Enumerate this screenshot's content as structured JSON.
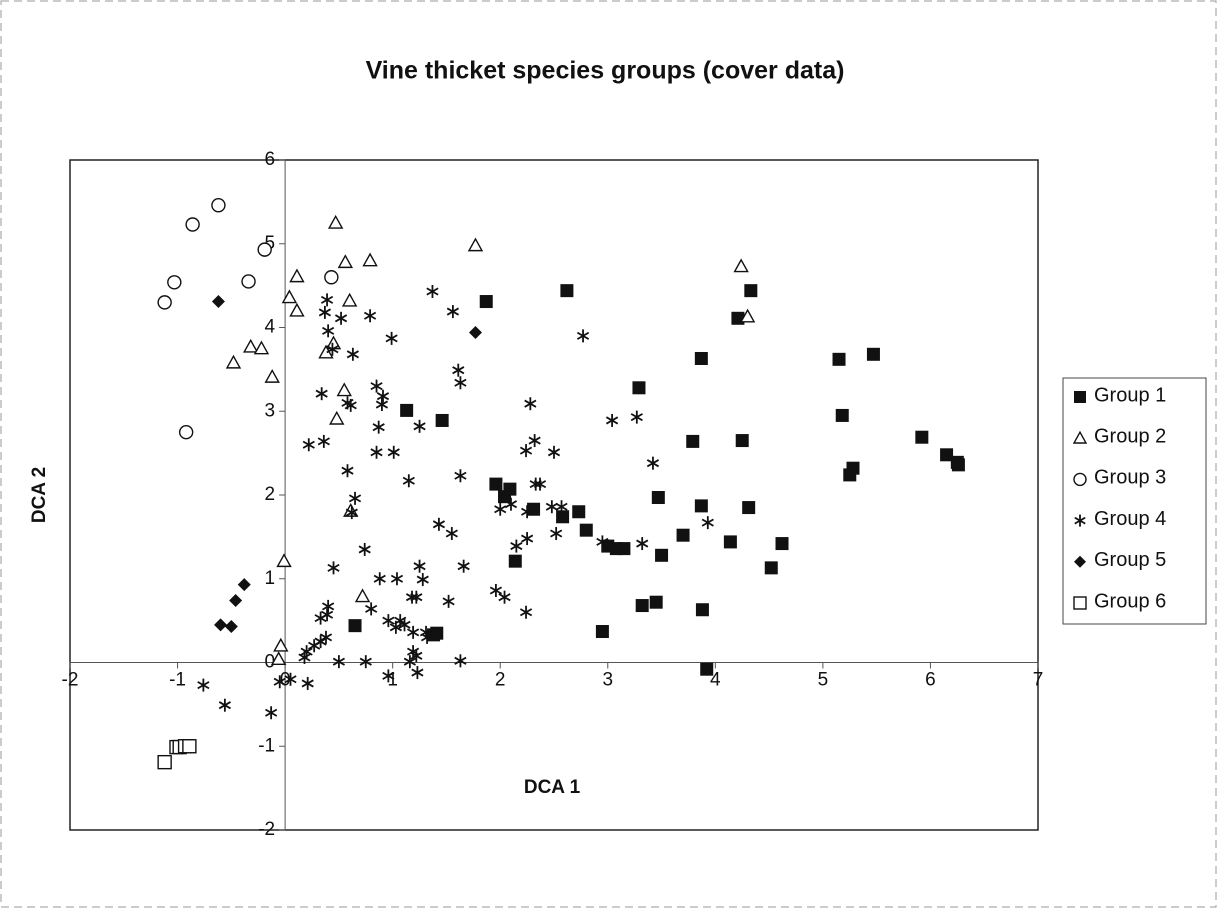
{
  "chart_data": {
    "type": "scatter",
    "title": "Vine thicket species groups (cover data)",
    "x_label": "DCA 1",
    "y_label": "DCA 2",
    "xlim": [
      -2,
      7
    ],
    "ylim": [
      -2,
      6
    ],
    "xticks": [
      -2,
      -1,
      0,
      1,
      2,
      3,
      4,
      5,
      6,
      7
    ],
    "yticks": [
      -2,
      -1,
      0,
      1,
      2,
      3,
      4,
      5,
      6
    ],
    "legend": "right",
    "series": [
      {
        "name": "Group 1",
        "color": "#111111",
        "marker": "square-filled",
        "x": [
          1.87,
          2.62,
          4.33,
          4.21,
          3.87,
          3.29,
          5.15,
          5.47,
          1.13,
          1.46,
          5.18,
          3.79,
          4.25,
          5.92,
          6.15,
          6.25,
          6.26,
          5.25,
          5.28,
          1.96,
          2.09,
          2.04,
          3.47,
          3.87,
          4.31,
          2.31,
          2.73,
          2.58,
          2.8,
          3.7,
          3.0,
          3.08,
          3.15,
          4.14,
          4.62,
          3.5,
          4.52,
          2.14,
          0.65,
          1.41,
          1.38,
          3.32,
          3.45,
          3.88,
          2.95,
          3.92
        ],
        "y": [
          4.31,
          4.44,
          4.44,
          4.11,
          3.63,
          3.28,
          3.62,
          3.68,
          3.01,
          2.89,
          2.95,
          2.64,
          2.65,
          2.69,
          2.48,
          2.39,
          2.36,
          2.24,
          2.32,
          2.13,
          2.07,
          1.98,
          1.97,
          1.87,
          1.85,
          1.83,
          1.8,
          1.74,
          1.58,
          1.52,
          1.39,
          1.36,
          1.36,
          1.44,
          1.42,
          1.28,
          1.13,
          1.21,
          0.44,
          0.35,
          0.33,
          0.68,
          0.72,
          0.63,
          0.37,
          -0.08
        ]
      },
      {
        "name": "Group 2",
        "color": "#111111",
        "marker": "triangle-open",
        "x": [
          0.47,
          1.77,
          0.11,
          0.56,
          0.79,
          4.24,
          0.04,
          0.11,
          0.6,
          4.3,
          0.45,
          0.38,
          -0.32,
          -0.22,
          -0.48,
          -0.12,
          0.55,
          0.48,
          0.61,
          -0.01,
          0.72,
          -0.04,
          -0.06
        ],
        "y": [
          5.25,
          4.98,
          4.61,
          4.78,
          4.8,
          4.73,
          4.36,
          4.2,
          4.32,
          4.13,
          3.81,
          3.7,
          3.77,
          3.75,
          3.58,
          3.41,
          3.25,
          2.91,
          1.81,
          1.21,
          0.79,
          0.2,
          0.04
        ]
      },
      {
        "name": "Group 3",
        "color": "#111111",
        "marker": "circle-open",
        "x": [
          -0.62,
          -0.86,
          -0.19,
          -1.03,
          -0.34,
          -1.12,
          0.43,
          -0.92
        ],
        "y": [
          5.46,
          5.23,
          4.93,
          4.54,
          4.55,
          4.3,
          4.6,
          2.75
        ]
      },
      {
        "name": "Group 4",
        "color": "#111111",
        "marker": "asterisk",
        "x": [
          1.37,
          0.39,
          0.37,
          0.52,
          0.79,
          1.56,
          0.4,
          2.77,
          0.99,
          0.44,
          0.63,
          1.61,
          1.63,
          0.34,
          0.85,
          0.91,
          0.58,
          0.61,
          2.28,
          0.9,
          3.04,
          3.27,
          0.36,
          0.22,
          0.87,
          1.25,
          2.32,
          0.85,
          1.01,
          2.24,
          2.5,
          3.42,
          0.58,
          1.63,
          1.15,
          2.33,
          2.37,
          0.65,
          2.0,
          2.1,
          2.48,
          2.57,
          0.62,
          1.43,
          1.55,
          2.25,
          2.52,
          2.25,
          2.95,
          3.32,
          3.93,
          2.15,
          0.74,
          0.45,
          1.25,
          1.66,
          1.28,
          0.88,
          1.04,
          1.96,
          2.04,
          1.18,
          1.22,
          1.52,
          0.4,
          2.24,
          0.8,
          0.39,
          0.33,
          0.96,
          1.07,
          1.03,
          1.11,
          1.19,
          1.31,
          1.32,
          0.38,
          0.27,
          0.33,
          0.2,
          0.18,
          1.19,
          1.22,
          1.23,
          0.5,
          0.75,
          1.16,
          1.63,
          0.96,
          0.05,
          -0.05,
          0.21,
          -0.76,
          -0.56,
          -0.13
        ],
        "y": [
          4.43,
          4.33,
          4.18,
          4.11,
          4.14,
          4.19,
          3.96,
          3.9,
          3.87,
          3.74,
          3.68,
          3.49,
          3.34,
          3.21,
          3.3,
          3.18,
          3.1,
          3.07,
          3.09,
          3.08,
          2.89,
          2.93,
          2.64,
          2.6,
          2.81,
          2.82,
          2.65,
          2.51,
          2.51,
          2.53,
          2.51,
          2.38,
          2.29,
          2.23,
          2.17,
          2.13,
          2.13,
          1.96,
          1.83,
          1.89,
          1.86,
          1.86,
          1.79,
          1.65,
          1.54,
          1.8,
          1.54,
          1.48,
          1.44,
          1.42,
          1.67,
          1.39,
          1.35,
          1.13,
          1.15,
          1.15,
          0.99,
          1.0,
          1.0,
          0.86,
          0.78,
          0.78,
          0.78,
          0.73,
          0.67,
          0.6,
          0.64,
          0.57,
          0.53,
          0.5,
          0.5,
          0.42,
          0.45,
          0.36,
          0.36,
          0.3,
          0.3,
          0.2,
          0.25,
          0.13,
          0.06,
          0.13,
          0.08,
          -0.12,
          0.01,
          0.01,
          0.01,
          0.02,
          -0.16,
          -0.2,
          -0.23,
          -0.25,
          -0.27,
          -0.51,
          -0.6
        ]
      },
      {
        "name": "Group 5",
        "color": "#111111",
        "marker": "diamond-filled",
        "x": [
          -0.62,
          1.77,
          -0.38,
          -0.46,
          -0.6,
          -0.5
        ],
        "y": [
          4.31,
          3.94,
          0.93,
          0.74,
          0.45,
          0.43
        ]
      },
      {
        "name": "Group 6",
        "color": "#111111",
        "marker": "square-open",
        "x": [
          -1.12,
          -1.01,
          -0.98,
          -0.93,
          -0.89
        ],
        "y": [
          -1.19,
          -1.01,
          -1.01,
          -1.0,
          -1.0
        ]
      }
    ]
  }
}
